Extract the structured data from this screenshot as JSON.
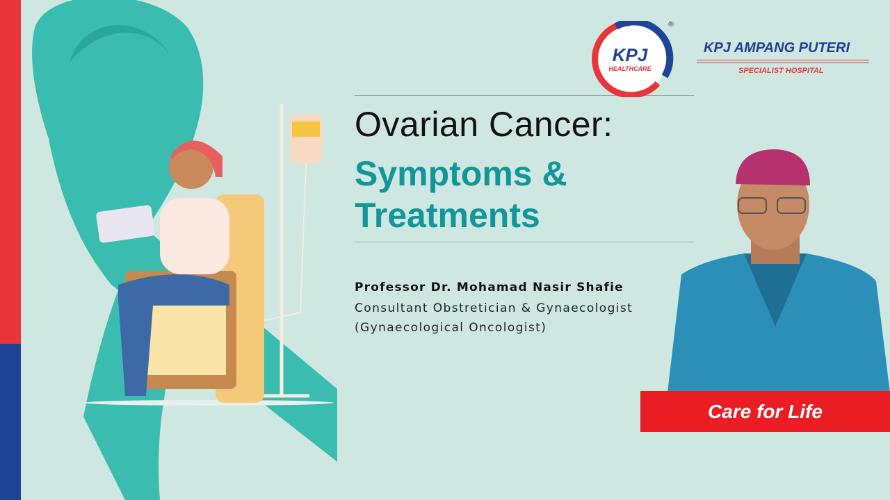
{
  "title": {
    "line1": "Ovarian Cancer:",
    "line2": "Symptoms &",
    "line3": "Treatments"
  },
  "presenter": {
    "name": "Professor Dr. Mohamad Nasir Shafie",
    "role": "Consultant Obstretician & Gynaecologist (Gynaecological Oncologist)"
  },
  "logo": {
    "kpj": "KPJ",
    "healthcare": "HEALTHCARE",
    "registered": "®"
  },
  "hospital": {
    "name": "KPJ AMPANG PUTERI",
    "subtitle": "SPECIALIST HOSPITAL"
  },
  "tagline": "Care for Life",
  "colors": {
    "background": "#cfe7e1",
    "accent_teal": "#12969a",
    "brand_red": "#e8353b",
    "brand_blue": "#1f4396"
  }
}
